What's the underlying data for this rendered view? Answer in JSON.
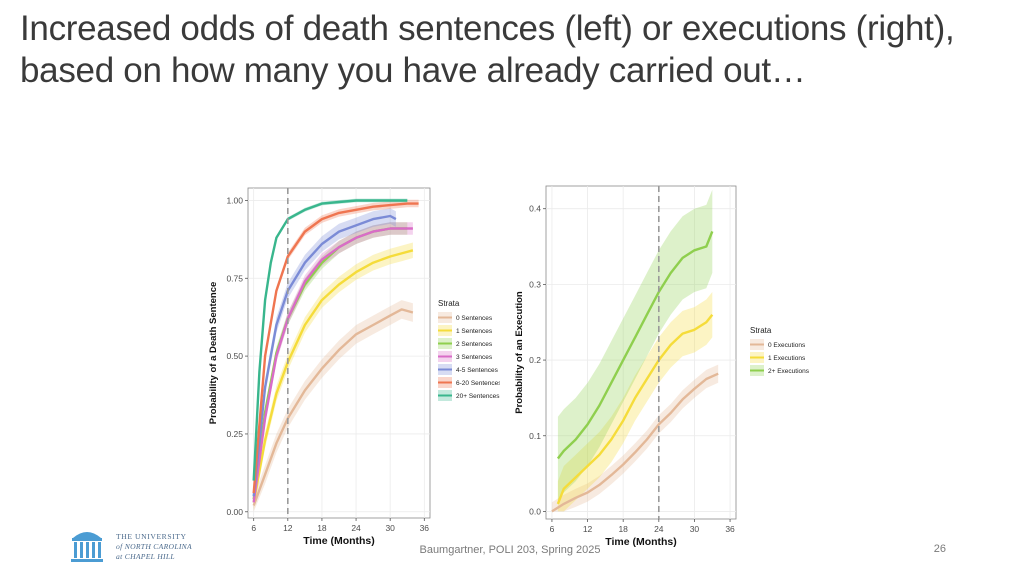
{
  "slide": {
    "title": "Increased odds of death sentences (left) or executions (right), based on how many you have already carried out…",
    "footer": "Baumgartner, POLI 203, Spring 2025",
    "page_number": "26",
    "logo_lines": [
      "THE UNIVERSITY",
      "of NORTH CAROLINA",
      "at CHAPEL HILL"
    ]
  },
  "colors": {
    "Sentences0": "#e3b898",
    "Sentences1": "#f5dc3a",
    "Sentences2": "#8fcf4e",
    "Sentences3": "#d96cc7",
    "Sentences45": "#7b8bd6",
    "Sentences620": "#ef7550",
    "Sentences20": "#39b68d",
    "guide": "#9a9a9a"
  },
  "chart_data": [
    {
      "type": "line",
      "xlabel": "Time (Months)",
      "ylabel": "Probability of a Death Sentence",
      "xlim": [
        5,
        37
      ],
      "ylim": [
        -0.02,
        1.04
      ],
      "xticks": [
        6,
        12,
        18,
        24,
        30,
        36
      ],
      "yticks": [
        0.0,
        0.25,
        0.5,
        0.75,
        1.0
      ],
      "ytick_labels": [
        "0.00",
        "0.25",
        "0.50",
        "0.75",
        "1.00"
      ],
      "vline": 12,
      "grid": true,
      "legend": {
        "title": "Strata",
        "position": "right",
        "labels": [
          "0 Sentences",
          "1 Sentences",
          "2 Sentences",
          "3 Sentences",
          "4-5 Sentences",
          "6-20 Sentences",
          "20+ Sentences"
        ]
      },
      "series": [
        {
          "name": "0 Sentences",
          "color_key": "Sentences0",
          "band": 0.03,
          "x": [
            6,
            8,
            10,
            12,
            15,
            18,
            21,
            24,
            27,
            30,
            32,
            34
          ],
          "y": [
            0.02,
            0.12,
            0.22,
            0.3,
            0.39,
            0.46,
            0.52,
            0.57,
            0.6,
            0.63,
            0.65,
            0.64
          ]
        },
        {
          "name": "1 Sentences",
          "color_key": "Sentences1",
          "band": 0.025,
          "x": [
            6,
            8,
            10,
            12,
            15,
            18,
            21,
            24,
            27,
            30,
            32,
            34
          ],
          "y": [
            0.03,
            0.23,
            0.38,
            0.48,
            0.6,
            0.68,
            0.73,
            0.77,
            0.8,
            0.82,
            0.83,
            0.84
          ]
        },
        {
          "name": "2 Sentences",
          "color_key": "Sentences2",
          "band": 0.02,
          "x": [
            6,
            8,
            10,
            12,
            15,
            18,
            21,
            24,
            27,
            30,
            33
          ],
          "y": [
            0.04,
            0.32,
            0.51,
            0.62,
            0.73,
            0.8,
            0.85,
            0.88,
            0.9,
            0.91,
            0.91
          ]
        },
        {
          "name": "3 Sentences",
          "color_key": "Sentences3",
          "band": 0.02,
          "x": [
            6,
            8,
            10,
            12,
            15,
            18,
            21,
            24,
            27,
            30,
            34
          ],
          "y": [
            0.03,
            0.3,
            0.5,
            0.62,
            0.74,
            0.81,
            0.85,
            0.88,
            0.9,
            0.91,
            0.91
          ]
        },
        {
          "name": "4-5 Sentences",
          "color_key": "Sentences45",
          "band": 0.025,
          "x": [
            6,
            8,
            10,
            12,
            15,
            18,
            21,
            24,
            27,
            30,
            31
          ],
          "y": [
            0.05,
            0.4,
            0.6,
            0.71,
            0.8,
            0.86,
            0.9,
            0.92,
            0.94,
            0.95,
            0.94
          ]
        },
        {
          "name": "6-20 Sentences",
          "color_key": "Sentences620",
          "band": 0.012,
          "x": [
            6,
            8,
            10,
            12,
            15,
            18,
            21,
            24,
            27,
            30,
            33,
            35
          ],
          "y": [
            0.06,
            0.5,
            0.71,
            0.82,
            0.9,
            0.94,
            0.96,
            0.97,
            0.98,
            0.985,
            0.99,
            0.99
          ]
        },
        {
          "name": "20+ Sentences",
          "color_key": "Sentences20",
          "band": 0.006,
          "x": [
            6,
            7,
            8,
            9,
            10,
            12,
            15,
            18,
            21,
            24,
            30,
            33
          ],
          "y": [
            0.1,
            0.45,
            0.68,
            0.8,
            0.88,
            0.94,
            0.97,
            0.99,
            0.995,
            1.0,
            1.0,
            1.0
          ]
        }
      ]
    },
    {
      "type": "line",
      "xlabel": "Time (Months)",
      "ylabel": "Probability of an Execution",
      "xlim": [
        5,
        37
      ],
      "ylim": [
        -0.01,
        0.43
      ],
      "xticks": [
        6,
        12,
        18,
        24,
        30,
        36
      ],
      "yticks": [
        0.0,
        0.1,
        0.2,
        0.3,
        0.4
      ],
      "ytick_labels": [
        "0.0",
        "0.1",
        "0.2",
        "0.3",
        "0.4"
      ],
      "vline": 24,
      "grid": true,
      "legend": {
        "title": "Strata",
        "position": "right",
        "labels": [
          "0 Executions",
          "1 Executions",
          "2+ Executions"
        ]
      },
      "series": [
        {
          "name": "0 Executions",
          "color_key": "Sentences0",
          "band": 0.012,
          "x": [
            6,
            8,
            10,
            12,
            14,
            16,
            18,
            20,
            22,
            24,
            26,
            28,
            30,
            32,
            34
          ],
          "y": [
            0.0,
            0.01,
            0.018,
            0.025,
            0.035,
            0.048,
            0.062,
            0.078,
            0.095,
            0.115,
            0.13,
            0.148,
            0.162,
            0.175,
            0.182
          ]
        },
        {
          "name": "1 Executions",
          "color_key": "Sentences1",
          "band": 0.03,
          "x": [
            7,
            8,
            10,
            12,
            14,
            16,
            18,
            20,
            22,
            24,
            26,
            28,
            30,
            32,
            33
          ],
          "y": [
            0.01,
            0.03,
            0.045,
            0.06,
            0.075,
            0.095,
            0.12,
            0.15,
            0.175,
            0.2,
            0.22,
            0.235,
            0.24,
            0.25,
            0.26
          ]
        },
        {
          "name": "2+ Executions",
          "color_key": "Sentences2",
          "band": 0.055,
          "x": [
            7,
            8,
            10,
            12,
            14,
            16,
            18,
            20,
            22,
            24,
            26,
            28,
            30,
            32,
            33
          ],
          "y": [
            0.07,
            0.08,
            0.095,
            0.115,
            0.14,
            0.17,
            0.2,
            0.23,
            0.26,
            0.29,
            0.315,
            0.335,
            0.345,
            0.35,
            0.37
          ]
        }
      ]
    }
  ]
}
